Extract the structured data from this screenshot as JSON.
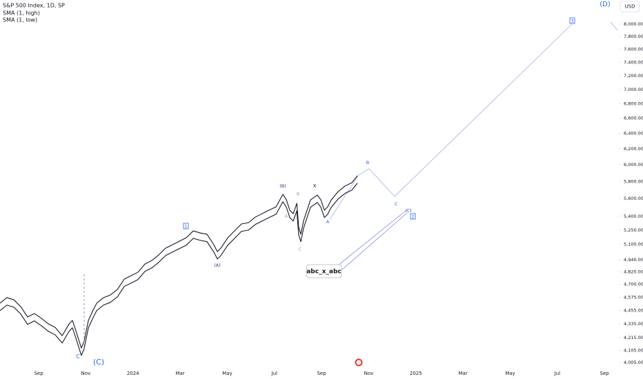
{
  "chart_data": {
    "type": "line",
    "title": "S&P 500 Index, 1D, SP",
    "currency": "USD",
    "log_scale": true,
    "grid": false,
    "x": [
      -1.64,
      -1.35,
      -1.05,
      -0.76,
      -0.47,
      -0.18,
      0.12,
      0.41,
      0.7,
      1.0,
      1.29,
      1.43,
      1.58,
      1.81,
      1.93,
      2.11,
      2.31,
      2.46,
      2.75,
      3.04,
      3.34,
      3.63,
      3.92,
      4.21,
      4.51,
      4.8,
      5.09,
      5.39,
      5.68,
      5.97,
      6.26,
      6.56,
      6.85,
      7.14,
      7.43,
      7.58,
      7.73,
      8.02,
      8.31,
      8.6,
      8.9,
      9.19,
      9.48,
      9.77,
      10.07,
      10.36,
      10.51,
      10.65,
      10.8,
      10.95,
      11.03,
      11.12,
      11.24,
      11.53,
      11.82,
      11.97,
      12.12,
      12.26,
      12.41,
      12.7,
      12.99,
      13.29,
      13.52
    ],
    "series": [
      {
        "name": "SMA (1, high)",
        "color": "#131722",
        "values": [
          4521,
          4573,
          4553,
          4489,
          4396,
          4427,
          4383,
          4334,
          4303,
          4231,
          4334,
          4365,
          4273,
          4125,
          4184,
          4365,
          4458,
          4521,
          4573,
          4598,
          4650,
          4750,
          4783,
          4817,
          4899,
          4934,
          4990,
          5061,
          5096,
          5133,
          5169,
          5242,
          5220,
          5206,
          5096,
          5025,
          5061,
          5169,
          5242,
          5317,
          5331,
          5392,
          5430,
          5469,
          5507,
          5649,
          5585,
          5469,
          5430,
          5546,
          5279,
          5206,
          5354,
          5585,
          5641,
          5585,
          5469,
          5507,
          5585,
          5680,
          5745,
          5786,
          5868
        ]
      },
      {
        "name": "SMA (1, low)",
        "color": "#131722",
        "values": [
          4453,
          4504,
          4485,
          4422,
          4330,
          4361,
          4317,
          4269,
          4238,
          4168,
          4269,
          4300,
          4209,
          4063,
          4121,
          4300,
          4391,
          4453,
          4504,
          4529,
          4580,
          4679,
          4711,
          4745,
          4826,
          4860,
          4915,
          4985,
          5020,
          5056,
          5091,
          5163,
          5142,
          5128,
          5020,
          4950,
          4985,
          5091,
          5163,
          5237,
          5251,
          5311,
          5349,
          5387,
          5424,
          5564,
          5501,
          5387,
          5349,
          5463,
          5200,
          5128,
          5274,
          5501,
          5556,
          5501,
          5387,
          5424,
          5501,
          5595,
          5659,
          5699,
          5780
        ]
      }
    ],
    "projections": [
      {
        "color": "#b9bcf2",
        "x": [
          12.35,
          13.58,
          14.02,
          15.1,
          22.62
        ],
        "values": [
          5369,
          5880,
          5951,
          5625,
          8002
        ]
      },
      {
        "color": "#b9bcf2",
        "x": [
          24.26,
          24.55
        ],
        "values": [
          8035,
          7900
        ]
      }
    ],
    "xlim": [
      -1.64,
      24.61
    ],
    "ylim": [
      3966,
      8406
    ],
    "xticks": [
      {
        "value": 0,
        "label": "Sep"
      },
      {
        "value": 2,
        "label": "Nov"
      },
      {
        "value": 4,
        "label": "2024"
      },
      {
        "value": 6,
        "label": "Mar"
      },
      {
        "value": 8,
        "label": "May"
      },
      {
        "value": 10,
        "label": "Jul"
      },
      {
        "value": 12,
        "label": "Sep"
      },
      {
        "value": 14,
        "label": "Nov"
      },
      {
        "value": 16,
        "label": "2025"
      },
      {
        "value": 18,
        "label": "Mar"
      },
      {
        "value": 20,
        "label": "May"
      },
      {
        "value": 22,
        "label": "Jul"
      },
      {
        "value": 24,
        "label": "Sep"
      }
    ],
    "yticks": [
      {
        "value": 8000,
        "label": "8,000.00"
      },
      {
        "value": 7800,
        "label": "7,800.00"
      },
      {
        "value": 7600,
        "label": "7,600.00"
      },
      {
        "value": 7400,
        "label": "7,400.00"
      },
      {
        "value": 7200,
        "label": "7,200.00"
      },
      {
        "value": 7000,
        "label": "7,000.00"
      },
      {
        "value": 6800,
        "label": "6,800.00"
      },
      {
        "value": 6600,
        "label": "6,600.00"
      },
      {
        "value": 6400,
        "label": "6,400.00"
      },
      {
        "value": 6200,
        "label": "6,200.00"
      },
      {
        "value": 6000,
        "label": "6,000.00"
      },
      {
        "value": 5800,
        "label": "5,800.00"
      },
      {
        "value": 5600,
        "label": "5,600.00"
      },
      {
        "value": 5400,
        "label": "5,400.00"
      },
      {
        "value": 5250,
        "label": "5,250.00"
      },
      {
        "value": 5100,
        "label": "5,100.00"
      },
      {
        "value": 4940,
        "label": "4,940.00"
      },
      {
        "value": 4820,
        "label": "4,820.00"
      },
      {
        "value": 4700,
        "label": "4,700.00"
      },
      {
        "value": 4575,
        "label": "4,575.00"
      },
      {
        "value": 4455,
        "label": "4,455.00"
      },
      {
        "value": 4335,
        "label": "4,335.00"
      },
      {
        "value": 4215,
        "label": "4,215.00"
      },
      {
        "value": 4105,
        "label": "4,105.00"
      },
      {
        "value": 4005,
        "label": "4,005.00"
      }
    ],
    "annotations": [
      "C",
      "(C)",
      "(A)",
      "1",
      "(B)",
      "A",
      "B",
      "C",
      "X",
      "A",
      "B",
      "C",
      "(C)",
      "2",
      "3",
      "(D)",
      "abc_x_abc"
    ]
  }
}
